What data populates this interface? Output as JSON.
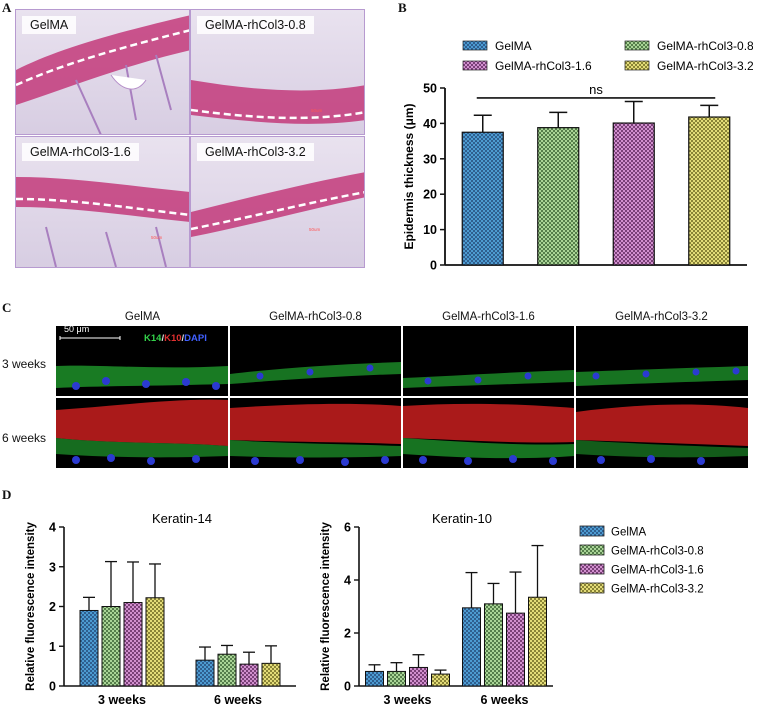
{
  "panel_labels": {
    "a": "A",
    "b": "B",
    "c": "C",
    "d": "D"
  },
  "panel_a": {
    "images": [
      "GelMA",
      "GelMA-rhCol3-0.8",
      "GelMA-rhCol3-1.6",
      "GelMA-rhCol3-3.2"
    ],
    "scale_text": "50um"
  },
  "panel_c": {
    "columns": [
      "GelMA",
      "GelMA-rhCol3-0.8",
      "GelMA-rhCol3-1.6",
      "GelMA-rhCol3-3.2"
    ],
    "rows": [
      "3 weeks",
      "6 weeks"
    ],
    "scale_bar": "50 μm",
    "stain": {
      "k14": "K14",
      "sep1": "/",
      "k10": "K10",
      "sep2": "/",
      "dapi": "DAPI"
    }
  },
  "colors": {
    "GelMA": "#2f5f8f",
    "GelMA-rhCol3-0.8": "#6e9a62",
    "GelMA-rhCol3-1.6": "#8e4f8c",
    "GelMA-rhCol3-3.2": "#a8a24a"
  },
  "chart_data": [
    {
      "type": "bar",
      "panel": "B",
      "title": "",
      "ylabel": "Epidermis thickness (μm)",
      "xlabel": "",
      "ylim": [
        0,
        50
      ],
      "yticks": [
        "0",
        "10",
        "20",
        "30",
        "40",
        "50"
      ],
      "categories": [
        "GelMA",
        "GelMA-rhCol3-0.8",
        "GelMA-rhCol3-1.6",
        "GelMA-rhCol3-3.2"
      ],
      "values": [
        37.5,
        38.8,
        40.1,
        41.8
      ],
      "errors": [
        4.8,
        4.3,
        6.1,
        3.3
      ],
      "legend": [
        "GelMA",
        "GelMA-rhCol3-0.8",
        "GelMA-rhCol3-1.6",
        "GelMA-rhCol3-3.2"
      ],
      "annotation": "ns"
    },
    {
      "type": "bar",
      "panel": "D",
      "title": "Keratin-14",
      "ylabel": "Relative fluorescence intensity",
      "xlabel": "",
      "ylim": [
        0,
        4
      ],
      "yticks": [
        "0",
        "1",
        "2",
        "3",
        "4"
      ],
      "categories": [
        "3 weeks",
        "6 weeks"
      ],
      "series": [
        {
          "name": "GelMA",
          "values": [
            1.9,
            0.65
          ],
          "errors": [
            0.33,
            0.33
          ]
        },
        {
          "name": "GelMA-rhCol3-0.8",
          "values": [
            2.0,
            0.8
          ],
          "errors": [
            1.13,
            0.22
          ]
        },
        {
          "name": "GelMA-rhCol3-1.6",
          "values": [
            2.1,
            0.55
          ],
          "errors": [
            1.02,
            0.3
          ]
        },
        {
          "name": "GelMA-rhCol3-3.2",
          "values": [
            2.22,
            0.57
          ],
          "errors": [
            0.85,
            0.44
          ]
        }
      ]
    },
    {
      "type": "bar",
      "panel": "D",
      "title": "Keratin-10",
      "ylabel": "Relative fluorescence intensity",
      "xlabel": "",
      "ylim": [
        0,
        6
      ],
      "yticks": [
        "0",
        "2",
        "4",
        "6"
      ],
      "categories": [
        "3 weeks",
        "6 weeks"
      ],
      "series": [
        {
          "name": "GelMA",
          "values": [
            0.55,
            2.95
          ],
          "errors": [
            0.25,
            1.33
          ]
        },
        {
          "name": "GelMA-rhCol3-0.8",
          "values": [
            0.55,
            3.1
          ],
          "errors": [
            0.33,
            0.77
          ]
        },
        {
          "name": "GelMA-rhCol3-1.6",
          "values": [
            0.7,
            2.75
          ],
          "errors": [
            0.48,
            1.55
          ]
        },
        {
          "name": "GelMA-rhCol3-3.2",
          "values": [
            0.45,
            3.35
          ],
          "errors": [
            0.15,
            1.95
          ]
        }
      ],
      "legend": [
        "GelMA",
        "GelMA-rhCol3-0.8",
        "GelMA-rhCol3-1.6",
        "GelMA-rhCol3-3.2"
      ]
    }
  ]
}
